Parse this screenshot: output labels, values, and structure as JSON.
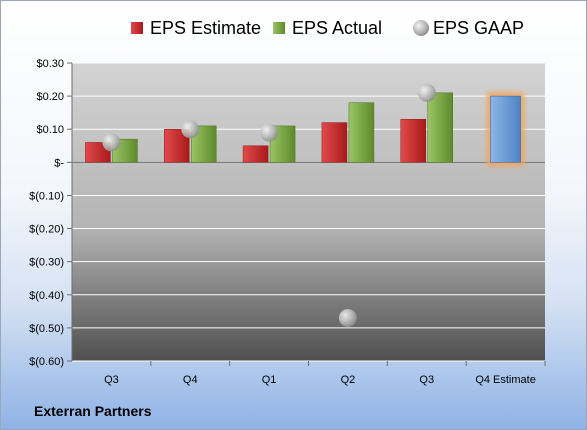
{
  "chart_data": {
    "type": "bar",
    "categories": [
      "Q3",
      "Q4",
      "Q1",
      "Q2",
      "Q3",
      "Q4 Estimate"
    ],
    "series": [
      {
        "name": "EPS Estimate",
        "values": [
          0.06,
          0.1,
          0.05,
          0.12,
          0.13,
          null
        ],
        "color": "#cc2a2a"
      },
      {
        "name": "EPS Actual",
        "values": [
          0.07,
          0.11,
          0.11,
          0.18,
          0.21,
          null
        ],
        "color": "#7eaa43"
      },
      {
        "name": "EPS GAAP",
        "values": [
          0.06,
          0.1,
          0.09,
          -0.47,
          0.21,
          null
        ],
        "color": "#b9b9b9"
      }
    ],
    "highlight": {
      "category": "Q4 Estimate",
      "value": 0.2,
      "color": "#6f9fd8",
      "glow_color": "#f4a55a"
    },
    "y_ticks": [
      "$0.30",
      "$0.20",
      "$0.10",
      "$-",
      "$(0.10)",
      "$(0.20)",
      "$(0.30)",
      "$(0.40)",
      "$(0.50)",
      "$(0.60)"
    ],
    "ylim": [
      -0.6,
      0.3
    ],
    "grid": true,
    "legend_position": "top"
  },
  "company": "Exterran Partners"
}
